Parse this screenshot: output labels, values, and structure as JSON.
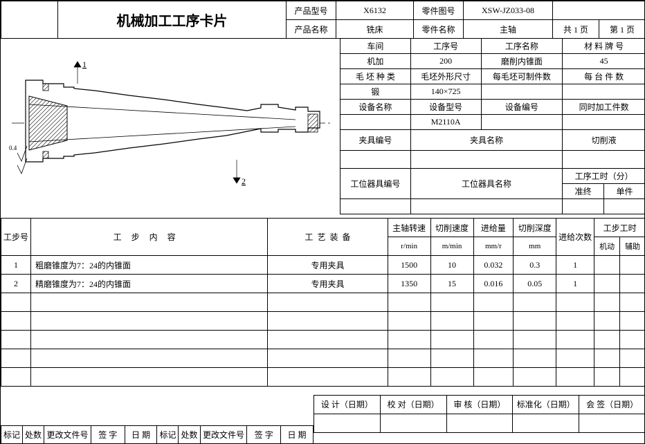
{
  "header": {
    "title": "机械加工工序卡片",
    "product_model_label": "产品型号",
    "product_model": "X6132",
    "part_drawing_no_label": "零件图号",
    "part_drawing_no": "XSW-JZ033-08",
    "product_name_label": "产品名称",
    "product_name": "铣床",
    "part_name_label": "零件名称",
    "part_name": "主轴",
    "page_total": "共 1 页",
    "page_current": "第 1 页"
  },
  "meta": {
    "workshop_label": "车间",
    "workshop": "机加",
    "proc_no_label": "工序号",
    "proc_no": "200",
    "proc_name_label": "工序名称",
    "proc_name": "磨削内锥面",
    "material_label": "材 料 牌 号",
    "material": "45",
    "blank_type_label": "毛 坯 种 类",
    "blank_type": "锻",
    "blank_size_label": "毛坯外形尺寸",
    "blank_size": "140×725",
    "per_blank_label": "每毛坯可制件数",
    "per_blank": "",
    "per_machine_label": "每 台 件 数",
    "per_machine": "",
    "equip_name_label": "设备名称",
    "equip_name": "",
    "equip_model_label": "设备型号",
    "equip_model": "M2110A",
    "equip_no_label": "设备编号",
    "equip_no": "",
    "concurrent_label": "同时加工件数",
    "concurrent": "",
    "fixture_no_label": "夹具编号",
    "fixture_no": "",
    "fixture_name_label": "夹具名称",
    "fixture_name": "",
    "coolant_label": "切削液",
    "coolant": "",
    "station_tool_no_label": "工位器具编号",
    "station_tool_no": "",
    "station_tool_name_label": "工位器具名称",
    "station_tool_name": "",
    "proc_time_label": "工序工时（分）",
    "prep_label": "准终",
    "unit_label": "单件"
  },
  "steps": {
    "headers": {
      "step_no": "工步号",
      "content": "工步内容",
      "c1": "工",
      "c2": "步",
      "c3": "内",
      "c4": "容",
      "tooling": "工 艺 装 备",
      "t1": "工",
      "t2": "艺",
      "t3": "装",
      "t4": "备",
      "spindle": "主轴转速",
      "spindle_u": "r/min",
      "cut_speed": "切削速度",
      "cut_speed_u": "m/min",
      "feed": "进给量",
      "feed_u": "mm/r",
      "depth": "切削深度",
      "depth_u": "mm",
      "passes": "进给次数",
      "step_time": "工步工时",
      "machine_t": "机动",
      "aux_t": "辅助"
    },
    "rows": [
      {
        "no": "1",
        "content": "粗磨锥度为7：24的内锥面",
        "tooling": "专用夹具",
        "spindle": "1500",
        "speed": "10",
        "feed": "0.032",
        "depth": "0.3",
        "passes": "1",
        "m": "",
        "a": ""
      },
      {
        "no": "2",
        "content": "精磨锥度为7：24的内锥面",
        "tooling": "专用夹具",
        "spindle": "1350",
        "speed": "15",
        "feed": "0.016",
        "depth": "0.05",
        "passes": "1",
        "m": "",
        "a": ""
      },
      {
        "no": "",
        "content": "",
        "tooling": "",
        "spindle": "",
        "speed": "",
        "feed": "",
        "depth": "",
        "passes": "",
        "m": "",
        "a": ""
      },
      {
        "no": "",
        "content": "",
        "tooling": "",
        "spindle": "",
        "speed": "",
        "feed": "",
        "depth": "",
        "passes": "",
        "m": "",
        "a": ""
      },
      {
        "no": "",
        "content": "",
        "tooling": "",
        "spindle": "",
        "speed": "",
        "feed": "",
        "depth": "",
        "passes": "",
        "m": "",
        "a": ""
      },
      {
        "no": "",
        "content": "",
        "tooling": "",
        "spindle": "",
        "speed": "",
        "feed": "",
        "depth": "",
        "passes": "",
        "m": "",
        "a": ""
      },
      {
        "no": "",
        "content": "",
        "tooling": "",
        "spindle": "",
        "speed": "",
        "feed": "",
        "depth": "",
        "passes": "",
        "m": "",
        "a": ""
      }
    ]
  },
  "footer": {
    "design": "设 计（日期）",
    "check": "校 对（日期）",
    "review": "审 核（日期）",
    "standard": "标准化（日期）",
    "approve": "会 签（日期）",
    "mark": "标记",
    "qty": "处数",
    "change_doc": "更改文件号",
    "sign": "签   字",
    "date": "日   期"
  },
  "drawing": {
    "stroke": "#000000",
    "hatch": "#000000",
    "centerline": "#000000",
    "dim1": "1",
    "dim2": "2",
    "note": "0.4"
  }
}
